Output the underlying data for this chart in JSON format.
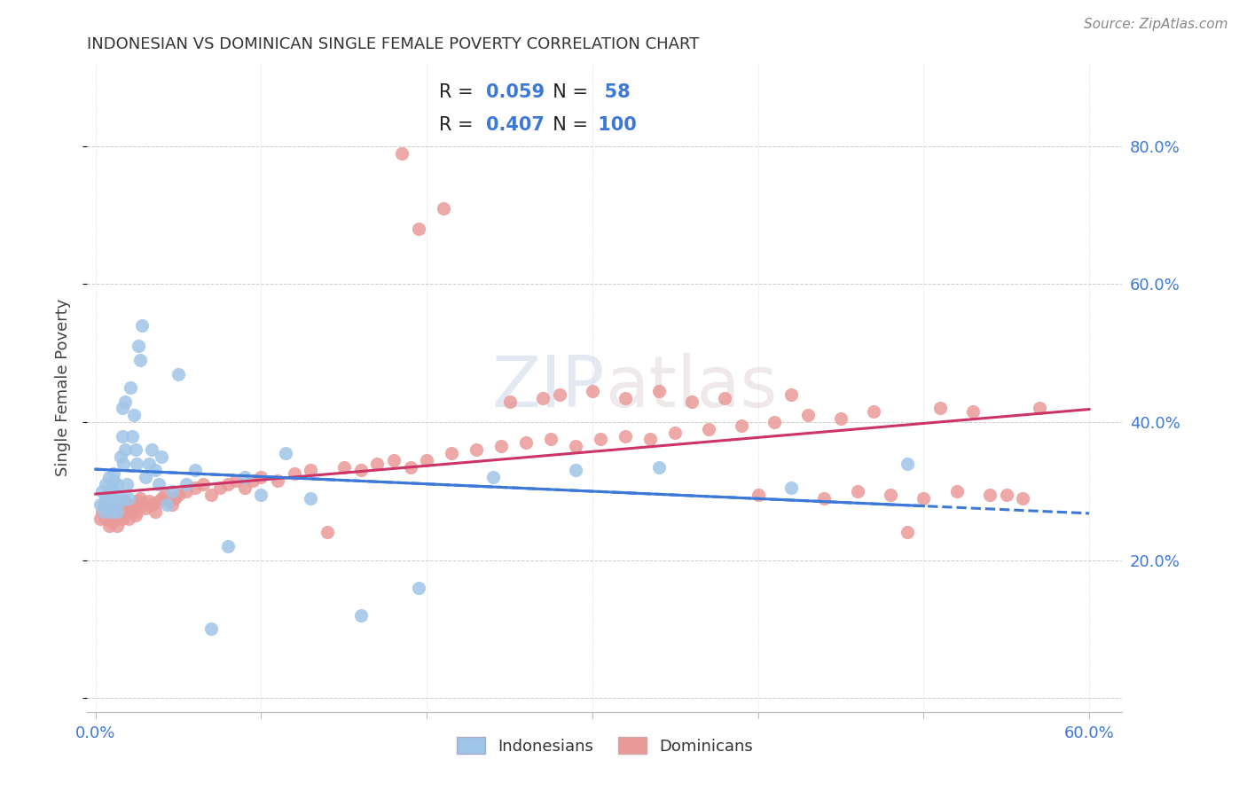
{
  "title": "INDONESIAN VS DOMINICAN SINGLE FEMALE POVERTY CORRELATION CHART",
  "source": "Source: ZipAtlas.com",
  "ylabel": "Single Female Poverty",
  "xlim": [
    -0.005,
    0.62
  ],
  "ylim": [
    -0.02,
    0.92
  ],
  "ytick_vals": [
    0.2,
    0.4,
    0.6,
    0.8
  ],
  "ytick_labels": [
    "20.0%",
    "40.0%",
    "60.0%",
    "80.0%"
  ],
  "xtick_vals": [
    0.0,
    0.1,
    0.2,
    0.3,
    0.4,
    0.5,
    0.6
  ],
  "xtick_labels": [
    "0.0%",
    "",
    "",
    "",
    "",
    "",
    "60.0%"
  ],
  "legend_r_blue": "0.059",
  "legend_n_blue": "58",
  "legend_r_pink": "0.407",
  "legend_n_pink": "100",
  "blue_scatter_color": "#9fc5e8",
  "pink_scatter_color": "#ea9999",
  "blue_line_color": "#3c78d8",
  "pink_line_color": "#cc3366",
  "axis_label_color": "#3c78d8",
  "grid_color": "#cccccc",
  "indonesian_x": [
    0.003,
    0.004,
    0.005,
    0.006,
    0.006,
    0.007,
    0.008,
    0.008,
    0.009,
    0.01,
    0.01,
    0.011,
    0.011,
    0.012,
    0.013,
    0.013,
    0.014,
    0.015,
    0.015,
    0.016,
    0.016,
    0.017,
    0.018,
    0.018,
    0.019,
    0.02,
    0.021,
    0.022,
    0.023,
    0.024,
    0.025,
    0.026,
    0.027,
    0.028,
    0.03,
    0.032,
    0.034,
    0.036,
    0.038,
    0.04,
    0.043,
    0.046,
    0.05,
    0.055,
    0.06,
    0.07,
    0.08,
    0.09,
    0.1,
    0.115,
    0.13,
    0.16,
    0.195,
    0.24,
    0.29,
    0.34,
    0.42,
    0.49
  ],
  "indonesian_y": [
    0.28,
    0.3,
    0.27,
    0.29,
    0.31,
    0.28,
    0.3,
    0.32,
    0.27,
    0.29,
    0.305,
    0.315,
    0.325,
    0.28,
    0.27,
    0.31,
    0.295,
    0.285,
    0.35,
    0.38,
    0.42,
    0.34,
    0.36,
    0.43,
    0.31,
    0.29,
    0.45,
    0.38,
    0.41,
    0.36,
    0.34,
    0.51,
    0.49,
    0.54,
    0.32,
    0.34,
    0.36,
    0.33,
    0.31,
    0.35,
    0.28,
    0.3,
    0.47,
    0.31,
    0.33,
    0.1,
    0.22,
    0.32,
    0.295,
    0.355,
    0.29,
    0.12,
    0.16,
    0.32,
    0.33,
    0.335,
    0.305,
    0.34
  ],
  "dominican_x": [
    0.003,
    0.004,
    0.005,
    0.006,
    0.007,
    0.007,
    0.008,
    0.009,
    0.01,
    0.01,
    0.011,
    0.012,
    0.013,
    0.014,
    0.015,
    0.016,
    0.017,
    0.018,
    0.019,
    0.02,
    0.021,
    0.022,
    0.023,
    0.024,
    0.025,
    0.026,
    0.027,
    0.028,
    0.03,
    0.032,
    0.034,
    0.036,
    0.038,
    0.04,
    0.042,
    0.044,
    0.046,
    0.048,
    0.05,
    0.055,
    0.06,
    0.065,
    0.07,
    0.075,
    0.08,
    0.085,
    0.09,
    0.095,
    0.1,
    0.11,
    0.12,
    0.13,
    0.14,
    0.15,
    0.16,
    0.17,
    0.18,
    0.19,
    0.2,
    0.215,
    0.23,
    0.245,
    0.26,
    0.275,
    0.29,
    0.305,
    0.32,
    0.335,
    0.35,
    0.37,
    0.39,
    0.41,
    0.43,
    0.45,
    0.47,
    0.49,
    0.51,
    0.53,
    0.55,
    0.57,
    0.25,
    0.27,
    0.28,
    0.3,
    0.32,
    0.34,
    0.36,
    0.38,
    0.4,
    0.42,
    0.44,
    0.46,
    0.48,
    0.5,
    0.52,
    0.54,
    0.56,
    0.21,
    0.195,
    0.185
  ],
  "dominican_y": [
    0.26,
    0.27,
    0.28,
    0.26,
    0.27,
    0.28,
    0.25,
    0.265,
    0.255,
    0.27,
    0.26,
    0.275,
    0.25,
    0.265,
    0.27,
    0.26,
    0.28,
    0.285,
    0.275,
    0.26,
    0.27,
    0.275,
    0.28,
    0.265,
    0.27,
    0.285,
    0.29,
    0.28,
    0.275,
    0.285,
    0.28,
    0.27,
    0.285,
    0.29,
    0.295,
    0.285,
    0.28,
    0.29,
    0.295,
    0.3,
    0.305,
    0.31,
    0.295,
    0.305,
    0.31,
    0.315,
    0.305,
    0.315,
    0.32,
    0.315,
    0.325,
    0.33,
    0.24,
    0.335,
    0.33,
    0.34,
    0.345,
    0.335,
    0.345,
    0.355,
    0.36,
    0.365,
    0.37,
    0.375,
    0.365,
    0.375,
    0.38,
    0.375,
    0.385,
    0.39,
    0.395,
    0.4,
    0.41,
    0.405,
    0.415,
    0.24,
    0.42,
    0.415,
    0.295,
    0.42,
    0.43,
    0.435,
    0.44,
    0.445,
    0.435,
    0.445,
    0.43,
    0.435,
    0.295,
    0.44,
    0.29,
    0.3,
    0.295,
    0.29,
    0.3,
    0.295,
    0.29,
    0.71,
    0.68,
    0.79
  ]
}
